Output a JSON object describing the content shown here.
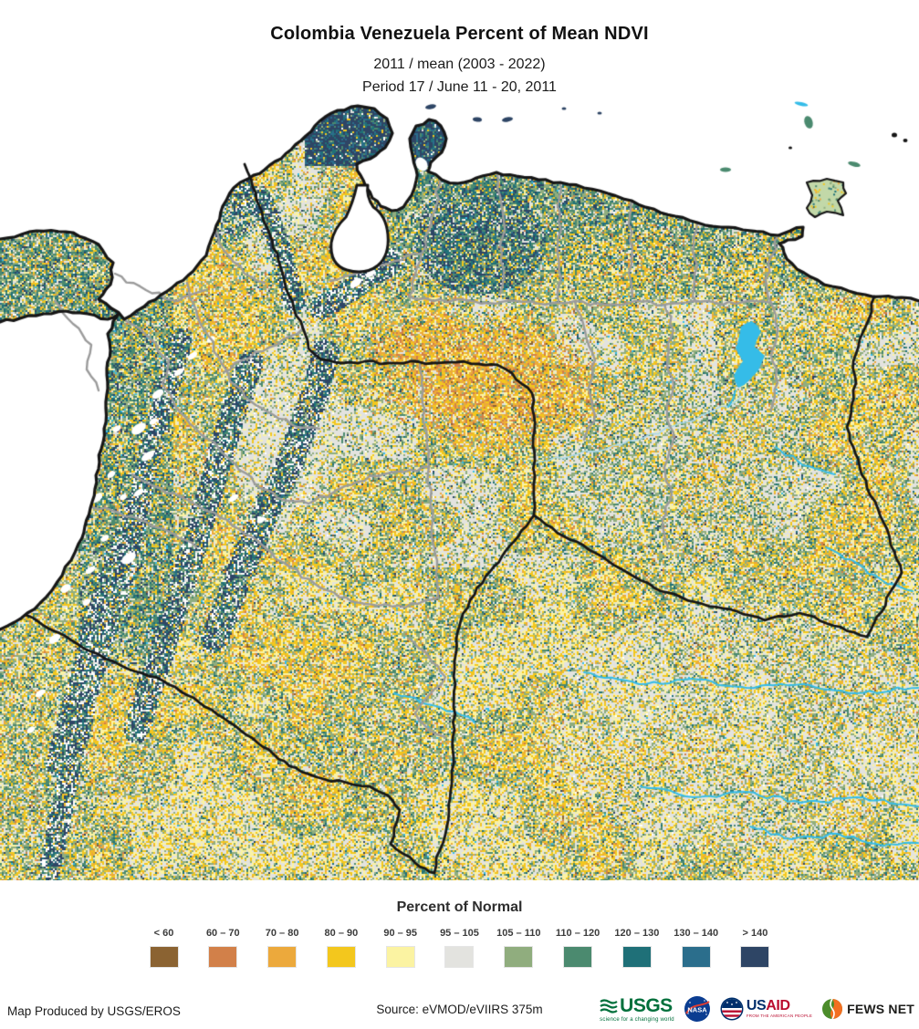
{
  "header": {
    "title": "Colombia Venezuela Percent of Mean NDVI",
    "subtitle_line1": "2011 / mean (2003 - 2022)",
    "subtitle_line2": "Period 17 / June 11 - 20, 2011"
  },
  "map": {
    "description": "Percent of mean NDVI raster map of Colombia and Venezuela",
    "ocean_color": "#ffffff",
    "water_color": "#35bce8",
    "international_border_color": "#161616",
    "admin_border_color": "#9b9b9b",
    "no_data_color": "#ffffff"
  },
  "legend": {
    "title": "Percent of Normal",
    "classes": [
      {
        "label": "< 60",
        "color": "#8b6332"
      },
      {
        "label": "60 – 70",
        "color": "#d28049"
      },
      {
        "label": "70 – 80",
        "color": "#eca93c"
      },
      {
        "label": "80 – 90",
        "color": "#f3c71d"
      },
      {
        "label": "90 – 95",
        "color": "#fbf3a2"
      },
      {
        "label": "95 – 105",
        "color": "#e3e3df"
      },
      {
        "label": "105 – 110",
        "color": "#90ad7e"
      },
      {
        "label": "110 – 120",
        "color": "#4b8a6f"
      },
      {
        "label": "120 – 130",
        "color": "#1f7078"
      },
      {
        "label": "130 – 140",
        "color": "#2b6e8c"
      },
      {
        "label": "> 140",
        "color": "#2e4565"
      }
    ]
  },
  "footer": {
    "credit": "Map Produced by USGS/EROS",
    "source": "Source: eVMOD/eVIIRS 375m",
    "logos": {
      "usgs": {
        "name": "USGS",
        "tagline": "science for a changing world"
      },
      "nasa": {
        "name": "NASA"
      },
      "usaid": {
        "text_us": "US",
        "text_aid": "AID",
        "tagline": "FROM THE AMERICAN PEOPLE"
      },
      "fewsnet": {
        "name": "FEWS NET"
      }
    }
  }
}
